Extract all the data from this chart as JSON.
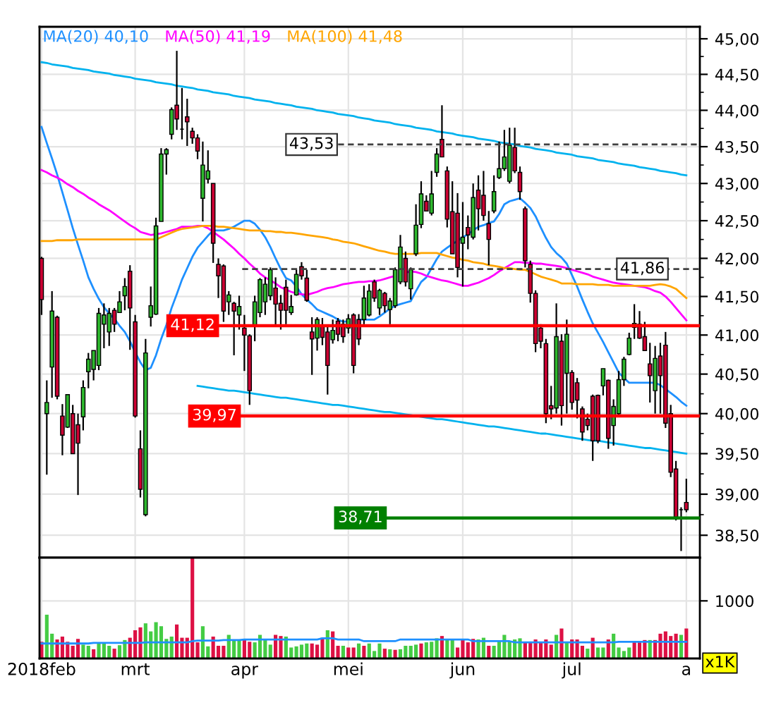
{
  "chart_data": [
    {
      "type": "candlestick",
      "log": true,
      "tick_labels": "y",
      "grid": true,
      "legend": "top left",
      "categories": [
        null,
        null,
        null,
        null,
        null,
        null,
        null,
        null,
        null,
        null,
        null,
        null,
        null,
        null,
        null,
        null,
        null,
        null,
        null,
        null,
        null,
        null,
        null,
        null,
        null,
        null,
        null,
        null,
        null,
        null,
        null,
        null,
        null,
        null,
        null,
        null,
        null,
        null,
        null,
        null,
        null,
        null,
        null,
        null,
        null,
        null,
        null,
        null,
        null,
        null,
        null,
        null,
        null,
        null,
        null,
        null,
        null,
        null,
        null,
        null,
        null,
        null,
        null,
        null,
        null,
        null,
        null,
        null,
        null,
        null,
        null,
        null,
        null,
        null,
        null,
        null,
        null,
        null,
        null,
        null,
        null,
        null,
        null,
        null,
        null,
        null,
        null,
        null,
        null,
        null,
        null,
        null,
        null,
        null,
        null,
        null,
        null,
        null,
        null,
        null,
        null,
        null,
        null,
        null,
        null,
        null,
        null,
        null,
        null,
        null,
        null,
        null,
        null,
        null,
        null,
        null,
        null,
        null,
        null,
        null,
        null,
        null,
        null,
        null,
        null
      ],
      "ohlc": [
        [
          42.0,
          42.02,
          41.26,
          41.46
        ],
        [
          40.0,
          40.42,
          39.24,
          40.14
        ],
        [
          40.59,
          41.57,
          40.2,
          41.31
        ],
        [
          41.23,
          41.25,
          40.18,
          40.22
        ],
        [
          39.97,
          40.12,
          39.48,
          39.73
        ],
        [
          39.83,
          40.24,
          39.82,
          40.24
        ],
        [
          40.0,
          40.11,
          39.5,
          39.5
        ],
        [
          39.86,
          40.0,
          38.99,
          39.63
        ],
        [
          39.96,
          40.42,
          39.79,
          40.33
        ],
        [
          40.53,
          40.77,
          40.32,
          40.69
        ],
        [
          40.56,
          40.8,
          40.42,
          40.8
        ],
        [
          40.61,
          41.35,
          40.55,
          41.28
        ],
        [
          41.14,
          41.41,
          40.83,
          41.26
        ],
        [
          41.04,
          41.35,
          40.86,
          41.28
        ],
        [
          41.32,
          41.35,
          41.04,
          41.14
        ],
        [
          41.29,
          41.57,
          41.29,
          41.43
        ],
        [
          41.51,
          41.74,
          41.32,
          41.63
        ],
        [
          41.83,
          41.91,
          40.81,
          41.35
        ],
        [
          41.17,
          41.26,
          39.95,
          39.97
        ],
        [
          39.56,
          39.79,
          38.96,
          39.06
        ],
        [
          38.75,
          40.95,
          38.73,
          40.77
        ],
        [
          41.23,
          41.63,
          41.11,
          41.38
        ],
        [
          41.27,
          42.54,
          41.26,
          42.43
        ],
        [
          42.49,
          43.48,
          42.49,
          43.4
        ],
        [
          43.4,
          43.48,
          43.12,
          43.46
        ],
        [
          43.67,
          44.04,
          43.6,
          44.01
        ],
        [
          44.07,
          44.83,
          43.73,
          43.88
        ],
        [
          43.74,
          44.31,
          43.6,
          43.74
        ],
        [
          43.91,
          44.16,
          43.51,
          43.84
        ],
        [
          43.71,
          43.76,
          43.54,
          43.62
        ],
        [
          43.62,
          43.67,
          43.33,
          43.44
        ],
        [
          42.8,
          43.57,
          42.49,
          43.25
        ],
        [
          43.06,
          43.45,
          43.0,
          43.17
        ],
        [
          43.0,
          43.0,
          41.94,
          42.2
        ],
        [
          41.92,
          42.0,
          41.48,
          41.77
        ],
        [
          41.9,
          41.92,
          41.17,
          41.31
        ],
        [
          41.43,
          41.57,
          41.26,
          41.52
        ],
        [
          41.41,
          41.43,
          40.74,
          41.31
        ],
        [
          41.26,
          41.51,
          41.07,
          41.37
        ],
        [
          41.09,
          41.26,
          40.54,
          41.0
        ],
        [
          40.99,
          41.01,
          40.11,
          40.29
        ],
        [
          41.11,
          41.51,
          40.92,
          41.43
        ],
        [
          41.29,
          41.74,
          41.23,
          41.72
        ],
        [
          41.43,
          41.75,
          41.26,
          41.66
        ],
        [
          41.51,
          41.88,
          41.45,
          41.85
        ],
        [
          41.61,
          41.75,
          41.11,
          41.4
        ],
        [
          41.41,
          41.52,
          41.07,
          41.32
        ],
        [
          41.62,
          41.72,
          41.14,
          41.32
        ],
        [
          41.29,
          41.52,
          41.26,
          41.37
        ],
        [
          41.52,
          41.85,
          41.51,
          41.79
        ],
        [
          41.89,
          41.95,
          41.72,
          41.77
        ],
        [
          41.74,
          41.85,
          41.43,
          41.45
        ],
        [
          41.04,
          41.23,
          40.49,
          40.95
        ],
        [
          40.96,
          41.23,
          40.8,
          41.2
        ],
        [
          41.12,
          41.22,
          40.87,
          40.97
        ],
        [
          41.04,
          41.12,
          40.24,
          40.61
        ],
        [
          40.94,
          41.2,
          40.89,
          41.06
        ],
        [
          41.18,
          41.22,
          40.92,
          41.01
        ],
        [
          41.14,
          41.2,
          40.9,
          40.98
        ],
        [
          41.09,
          41.27,
          41.02,
          41.21
        ],
        [
          41.26,
          41.28,
          40.51,
          40.61
        ],
        [
          41.2,
          41.27,
          40.87,
          40.95
        ],
        [
          41.2,
          41.64,
          41.14,
          41.48
        ],
        [
          41.26,
          41.66,
          41.24,
          41.57
        ],
        [
          41.69,
          41.72,
          41.43,
          41.48
        ],
        [
          41.35,
          41.6,
          41.26,
          41.58
        ],
        [
          41.54,
          41.56,
          41.29,
          41.38
        ],
        [
          41.33,
          41.48,
          41.14,
          41.44
        ],
        [
          41.38,
          41.88,
          41.35,
          41.85
        ],
        [
          41.69,
          42.31,
          41.66,
          42.15
        ],
        [
          42.0,
          42.09,
          41.63,
          41.69
        ],
        [
          41.6,
          41.88,
          41.46,
          41.85
        ],
        [
          42.06,
          42.72,
          42.03,
          42.44
        ],
        [
          42.45,
          43.03,
          42.4,
          42.86
        ],
        [
          42.76,
          42.84,
          42.63,
          42.63
        ],
        [
          42.6,
          43.17,
          42.57,
          42.86
        ],
        [
          43.15,
          43.48,
          43.09,
          43.4
        ],
        [
          43.6,
          44.07,
          43.36,
          43.36
        ],
        [
          43.17,
          43.23,
          42.41,
          42.52
        ],
        [
          42.62,
          43.03,
          42.06,
          42.06
        ],
        [
          42.6,
          42.87,
          41.75,
          41.88
        ],
        [
          42.2,
          42.75,
          41.63,
          42.28
        ],
        [
          42.41,
          42.57,
          42.12,
          42.31
        ],
        [
          42.28,
          43.0,
          42.25,
          42.81
        ],
        [
          42.91,
          43.11,
          42.37,
          42.66
        ],
        [
          42.84,
          43.17,
          42.5,
          42.57
        ],
        [
          42.46,
          42.63,
          41.91,
          42.25
        ],
        [
          42.63,
          43.11,
          42.6,
          42.89
        ],
        [
          43.08,
          43.57,
          43.06,
          43.2
        ],
        [
          43.2,
          43.73,
          43.17,
          43.36
        ],
        [
          43.03,
          43.76,
          43.0,
          43.52
        ],
        [
          43.49,
          43.76,
          43.14,
          43.17
        ],
        [
          43.15,
          43.23,
          42.78,
          42.89
        ],
        [
          42.66,
          42.69,
          41.88,
          41.97
        ],
        [
          41.92,
          41.97,
          41.42,
          41.54
        ],
        [
          41.54,
          41.58,
          40.78,
          40.89
        ],
        [
          41.09,
          41.14,
          40.83,
          40.92
        ],
        [
          40.89,
          40.95,
          39.88,
          40.0
        ],
        [
          40.1,
          40.35,
          39.93,
          40.06
        ],
        [
          40.07,
          41.41,
          40.0,
          40.98
        ],
        [
          40.92,
          41.01,
          39.85,
          40.1
        ],
        [
          40.51,
          41.2,
          40.0,
          41.01
        ],
        [
          40.52,
          40.55,
          40.05,
          40.14
        ],
        [
          40.39,
          40.45,
          39.94,
          40.17
        ],
        [
          40.06,
          40.09,
          39.66,
          39.77
        ],
        [
          39.93,
          40.0,
          39.79,
          39.85
        ],
        [
          40.22,
          40.24,
          39.41,
          39.66
        ],
        [
          40.23,
          40.24,
          39.63,
          39.66
        ],
        [
          40.35,
          40.57,
          40.23,
          40.57
        ],
        [
          40.42,
          40.43,
          39.56,
          39.69
        ],
        [
          39.85,
          40.18,
          39.6,
          40.09
        ],
        [
          40.0,
          40.54,
          39.97,
          40.43
        ],
        [
          40.43,
          40.72,
          40.35,
          40.69
        ],
        [
          40.75,
          41.03,
          40.74,
          40.96
        ],
        [
          41.1,
          41.4,
          40.95,
          41.15
        ],
        [
          41.14,
          41.31,
          40.95,
          40.96
        ],
        [
          40.98,
          41.17,
          40.8,
          40.8
        ],
        [
          40.63,
          40.9,
          40.14,
          40.48
        ],
        [
          40.29,
          40.86,
          40.0,
          40.7
        ],
        [
          40.73,
          40.9,
          40.0,
          40.48
        ],
        [
          40.87,
          41.04,
          39.82,
          39.88
        ],
        [
          40.0,
          40.11,
          39.21,
          39.27
        ],
        [
          39.31,
          39.41,
          38.68,
          38.72
        ],
        [
          38.81,
          38.84,
          38.31,
          38.81
        ],
        [
          38.9,
          39.19,
          38.78,
          38.81
        ]
      ],
      "colors": [
        "#cc0033",
        "#2eb82e",
        "#2eb82e",
        "#cc0033",
        "#cc0033",
        "#2eb82e",
        "#cc0033",
        "#cc0033",
        "#2eb82e",
        "#2eb82e",
        "#2eb82e",
        "#2eb82e",
        "#2eb82e",
        "#2eb82e",
        "#cc0033",
        "#2eb82e",
        "#2eb82e",
        "#cc0033",
        "#cc0033",
        "#cc0033",
        "#2eb82e",
        "#2eb82e",
        "#2eb82e",
        "#2eb82e",
        "#2eb82e",
        "#2eb82e",
        "#cc0033",
        "#000000",
        "#cc0033",
        "#cc0033",
        "#cc0033",
        "#2eb82e",
        "#2eb82e",
        "#cc0033",
        "#cc0033",
        "#cc0033",
        "#2eb82e",
        "#cc0033",
        "#2eb82e",
        "#cc0033",
        "#cc0033",
        "#2eb82e",
        "#2eb82e",
        "#2eb82e",
        "#2eb82e",
        "#cc0033",
        "#cc0033",
        "#cc0033",
        "#2eb82e",
        "#2eb82e",
        "#cc0033",
        "#cc0033",
        "#cc0033",
        "#2eb82e",
        "#cc0033",
        "#cc0033",
        "#2eb82e",
        "#cc0033",
        "#cc0033",
        "#2eb82e",
        "#cc0033",
        "#cc0033",
        "#2eb82e",
        "#2eb82e",
        "#cc0033",
        "#2eb82e",
        "#cc0033",
        "#2eb82e",
        "#2eb82e",
        "#2eb82e",
        "#cc0033",
        "#2eb82e",
        "#2eb82e",
        "#2eb82e",
        "#cc0033",
        "#2eb82e",
        "#2eb82e",
        "#cc0033",
        "#cc0033",
        "#cc0033",
        "#cc0033",
        "#2eb82e",
        "#cc0033",
        "#2eb82e",
        "#cc0033",
        "#cc0033",
        "#cc0033",
        "#2eb82e",
        "#2eb82e",
        "#2eb82e",
        "#2eb82e",
        "#cc0033",
        "#cc0033",
        "#cc0033",
        "#cc0033",
        "#cc0033",
        "#cc0033",
        "#cc0033",
        "#cc0033",
        "#2eb82e",
        "#cc0033",
        "#2eb82e",
        "#cc0033",
        "#cc0033",
        "#cc0033",
        "#cc0033",
        "#cc0033",
        "#cc0033",
        "#2eb82e",
        "#cc0033",
        "#2eb82e",
        "#2eb82e",
        "#2eb82e",
        "#2eb82e",
        "#2eb82e",
        "#cc0033",
        "#cc0033",
        "#cc0033",
        "#2eb82e",
        "#cc0033",
        "#cc0033",
        "#cc0033",
        "#cc0033",
        "#000000",
        "#cc0033"
      ],
      "series": [
        {
          "type": "line",
          "name": "MA(20) 40,10",
          "color": "#1e90ff",
          "values": [
            43.77,
            43.55,
            43.34,
            43.12,
            42.88,
            42.64,
            42.4,
            42.18,
            41.97,
            41.75,
            41.6,
            41.47,
            41.36,
            41.28,
            41.21,
            41.12,
            41.04,
            40.92,
            40.78,
            40.65,
            40.55,
            40.58,
            40.74,
            40.95,
            41.13,
            41.35,
            41.53,
            41.72,
            41.87,
            42.02,
            42.14,
            42.22,
            42.3,
            42.37,
            42.37,
            42.37,
            42.39,
            42.42,
            42.46,
            42.5,
            42.5,
            42.46,
            42.38,
            42.28,
            42.15,
            42.0,
            41.86,
            41.74,
            41.71,
            41.63,
            41.53,
            41.46,
            41.4,
            41.33,
            41.3,
            41.27,
            41.24,
            41.2,
            41.17,
            41.18,
            null,
            41.2,
            41.2,
            41.2,
            41.2,
            41.24,
            41.29,
            41.34,
            41.38,
            41.4,
            41.42,
            41.44,
            41.57,
            41.69,
            41.75,
            41.87,
            41.99,
            42.09,
            42.14,
            42.19,
            42.23,
            42.28,
            42.32,
            42.37,
            42.42,
            42.44,
            42.47,
            42.49,
            42.59,
            42.72,
            42.76,
            42.78,
            42.8,
            42.74,
            42.67,
            42.56,
            42.41,
            42.27,
            42.15,
            42.07,
            42.01,
            41.93,
            41.78,
            41.63,
            41.46,
            41.3,
            41.15,
            41.03,
            40.91,
            40.78,
            40.65,
            40.52,
            40.45,
            40.39,
            40.39,
            40.39,
            40.39,
            40.39,
            40.39,
            40.36,
            40.31,
            40.26,
            40.21,
            40.15,
            40.1
          ]
        },
        {
          "type": "line",
          "name": "MA(50) 41,19",
          "color": "#ff00ff",
          "values": [
            43.18,
            43.15,
            43.11,
            43.08,
            43.04,
            42.99,
            42.95,
            42.9,
            42.86,
            42.81,
            42.77,
            42.72,
            42.68,
            42.64,
            42.59,
            42.54,
            42.49,
            42.44,
            42.4,
            42.35,
            42.33,
            42.31,
            42.32,
            42.33,
            42.35,
            42.37,
            42.39,
            42.42,
            42.42,
            42.42,
            42.43,
            42.43,
            42.4,
            42.35,
            42.3,
            42.25,
            42.19,
            42.13,
            42.06,
            42.0,
            41.93,
            41.87,
            41.8,
            41.75,
            41.71,
            41.67,
            41.62,
            41.59,
            41.56,
            41.54,
            41.53,
            41.52,
            41.54,
            41.56,
            41.59,
            41.61,
            41.62,
            41.64,
            41.66,
            41.67,
            41.68,
            41.69,
            41.69,
            41.7,
            41.7,
            41.71,
            41.73,
            41.75,
            41.77,
            null,
            41.81,
            41.83,
            41.82,
            41.8,
            41.77,
            41.75,
            41.73,
            41.71,
            41.7,
            41.68,
            41.66,
            41.64,
            41.64,
            41.66,
            41.68,
            41.71,
            41.74,
            41.78,
            41.83,
            41.87,
            41.91,
            41.95,
            41.95,
            41.94,
            41.94,
            41.93,
            41.93,
            41.92,
            41.91,
            41.9,
            41.89,
            41.87,
            41.85,
            41.83,
            41.81,
            41.79,
            41.76,
            41.74,
            41.72,
            41.7,
            41.68,
            41.67,
            41.66,
            41.65,
            41.64,
            41.63,
            41.62,
            41.6,
            41.57,
            41.55,
            41.5,
            41.43,
            41.35,
            41.27,
            41.19
          ]
        },
        {
          "type": "line",
          "name": "MA(100) 41,48",
          "color": "#ffa500",
          "values": [
            42.23,
            42.23,
            42.23,
            42.24,
            42.24,
            42.24,
            42.24,
            42.25,
            42.25,
            42.25,
            42.25,
            42.25,
            42.25,
            42.25,
            42.25,
            42.25,
            42.25,
            42.25,
            42.25,
            42.25,
            42.25,
            42.25,
            42.25,
            42.28,
            42.31,
            42.34,
            42.37,
            42.39,
            42.4,
            42.41,
            42.42,
            42.43,
            42.43,
            42.43,
            42.42,
            42.42,
            42.41,
            42.4,
            42.39,
            42.38,
            42.37,
            42.37,
            42.37,
            42.36,
            42.36,
            42.35,
            42.35,
            42.34,
            42.34,
            42.33,
            42.32,
            42.31,
            42.3,
            42.29,
            42.28,
            42.27,
            42.25,
            42.24,
            42.22,
            42.21,
            42.2,
            42.18,
            42.16,
            42.14,
            42.12,
            42.1,
            42.09,
            42.07,
            42.06,
            42.06,
            42.06,
            42.06,
            42.06,
            42.07,
            42.07,
            42.07,
            42.07,
            42.05,
            42.03,
            42.01,
            42.0,
            41.98,
            41.97,
            41.95,
            41.94,
            41.93,
            41.91,
            41.9,
            41.89,
            41.87,
            41.87,
            41.86,
            41.85,
            41.85,
            41.82,
            41.79,
            41.76,
            41.74,
            41.72,
            41.7,
            41.67,
            41.67,
            41.67,
            41.66,
            41.66,
            41.66,
            41.66,
            41.65,
            41.65,
            41.65,
            41.64,
            41.64,
            41.64,
            41.64,
            41.64,
            41.64,
            41.64,
            41.64,
            41.65,
            41.66,
            41.65,
            41.63,
            41.6,
            41.54,
            41.48
          ]
        },
        {
          "type": "line",
          "color": "#00b2ee",
          "values": [
            44.67,
            44.66,
            44.64,
            44.63,
            44.62,
            44.61,
            44.59,
            44.58,
            44.57,
            44.56,
            44.54,
            44.53,
            44.52,
            44.51,
            44.49,
            44.48,
            44.47,
            44.46,
            44.44,
            44.43,
            44.42,
            44.41,
            44.39,
            44.38,
            44.37,
            44.36,
            44.34,
            44.33,
            44.32,
            44.31,
            44.29,
            44.28,
            44.27,
            44.25,
            44.24,
            44.23,
            44.22,
            44.2,
            44.19,
            44.18,
            44.17,
            44.15,
            44.14,
            44.13,
            44.12,
            44.1,
            44.09,
            44.08,
            44.07,
            44.05,
            44.04,
            44.03,
            44.02,
            44.0,
            43.99,
            43.98,
            43.97,
            43.95,
            43.94,
            43.93,
            43.92,
            43.9,
            43.89,
            43.88,
            43.86,
            43.85,
            43.84,
            43.83,
            43.81,
            43.8,
            43.79,
            43.78,
            43.76,
            43.75,
            43.74,
            43.73,
            43.71,
            43.7,
            43.69,
            43.68,
            43.66,
            43.65,
            43.64,
            43.63,
            43.61,
            43.6,
            43.59,
            43.58,
            43.56,
            43.55,
            43.54,
            43.53,
            43.51,
            43.5,
            43.49,
            43.47,
            43.46,
            43.45,
            43.44,
            43.42,
            43.41,
            43.4,
            43.39,
            43.37,
            43.36,
            43.35,
            43.34,
            43.32,
            43.31,
            43.3,
            43.29,
            43.27,
            43.26,
            43.25,
            43.24,
            43.22,
            43.21,
            43.2,
            43.19,
            43.17,
            43.16,
            43.15,
            43.14,
            43.12,
            43.11
          ]
        },
        {
          "type": "line",
          "color": "#00b2ee",
          "values": [
            null,
            null,
            null,
            null,
            null,
            null,
            null,
            null,
            null,
            null,
            null,
            null,
            null,
            null,
            null,
            null,
            null,
            null,
            null,
            null,
            null,
            null,
            null,
            null,
            null,
            null,
            null,
            null,
            null,
            null,
            40.35,
            40.34,
            40.33,
            40.32,
            40.31,
            40.3,
            40.29,
            40.29,
            40.28,
            40.27,
            40.26,
            40.25,
            40.24,
            40.23,
            40.22,
            40.21,
            40.2,
            40.2,
            40.19,
            40.18,
            40.17,
            40.16,
            40.15,
            40.14,
            40.13,
            40.12,
            40.11,
            40.11,
            40.1,
            40.09,
            40.08,
            40.07,
            40.06,
            40.05,
            40.04,
            40.03,
            40.02,
            40.02,
            40.01,
            40.0,
            39.99,
            39.98,
            39.97,
            39.96,
            39.95,
            39.94,
            39.93,
            39.93,
            39.92,
            39.91,
            39.9,
            39.89,
            39.88,
            39.87,
            39.86,
            39.85,
            39.84,
            39.84,
            39.83,
            39.82,
            39.81,
            39.8,
            39.79,
            39.78,
            39.77,
            39.76,
            39.75,
            39.75,
            39.74,
            39.73,
            39.72,
            39.71,
            39.7,
            39.69,
            39.68,
            39.67,
            39.66,
            39.66,
            39.65,
            39.64,
            39.63,
            39.62,
            39.61,
            39.6,
            39.59,
            39.58,
            39.57,
            39.57,
            39.56,
            39.55,
            39.54,
            39.53,
            39.52,
            39.51,
            39.5
          ]
        }
      ],
      "ref_lines": [
        {
          "axis": "y",
          "value": 43.53,
          "label": "43,53",
          "color": "#404040",
          "line_style": "dashed"
        },
        {
          "axis": "y",
          "value": 41.86,
          "label": "41,86",
          "color": "#404040",
          "line_style": "dashed"
        },
        {
          "axis": "y",
          "value": 41.12,
          "label": "41,12",
          "color": "#ff0000",
          "line_style": "solid"
        },
        {
          "axis": "y",
          "value": 39.97,
          "label": "39,97",
          "color": "#ff0000",
          "line_style": "solid"
        },
        {
          "axis": "y",
          "value": 38.71,
          "label": "38,71",
          "color": "#008000",
          "line_style": "solid"
        }
      ],
      "ylim": [
        38.23,
        45.17
      ],
      "yticks": [
        {
          "value": 38.5,
          "label": "38,50"
        },
        {
          "value": 39,
          "label": "39,00"
        },
        {
          "value": 39.5,
          "label": "39,50"
        },
        {
          "value": 40,
          "label": "40,00"
        },
        {
          "value": 40.5,
          "label": "40,50"
        },
        {
          "value": 41,
          "label": "41,00"
        },
        {
          "value": 41.5,
          "label": "41,50"
        },
        {
          "value": 42,
          "label": "42,00"
        },
        {
          "value": 42.5,
          "label": "42,50"
        },
        {
          "value": 43,
          "label": "43,00"
        },
        {
          "value": 43.5,
          "label": "43,50"
        },
        {
          "value": 44,
          "label": "44,00"
        },
        {
          "value": 44.5,
          "label": "44,50"
        },
        {
          "value": 45,
          "label": "45,00"
        }
      ]
    },
    {
      "type": "bar",
      "grid": true,
      "ylabel": "x1K",
      "categories": [
        "2018feb",
        null,
        null,
        null,
        null,
        null,
        null,
        null,
        null,
        null,
        null,
        null,
        null,
        null,
        null,
        null,
        null,
        null,
        "mrt",
        null,
        null,
        null,
        null,
        null,
        null,
        null,
        null,
        null,
        null,
        null,
        null,
        null,
        null,
        null,
        null,
        null,
        null,
        null,
        null,
        "apr",
        null,
        null,
        null,
        null,
        null,
        null,
        null,
        null,
        null,
        null,
        null,
        null,
        null,
        null,
        null,
        null,
        null,
        null,
        null,
        "mei",
        null,
        null,
        null,
        null,
        null,
        null,
        null,
        null,
        null,
        null,
        null,
        null,
        null,
        null,
        null,
        null,
        null,
        null,
        null,
        null,
        null,
        "jun",
        null,
        null,
        null,
        null,
        null,
        null,
        null,
        null,
        null,
        null,
        null,
        null,
        null,
        null,
        null,
        null,
        null,
        null,
        null,
        null,
        "jul",
        null,
        null,
        null,
        null,
        null,
        null,
        null,
        null,
        null,
        null,
        null,
        null,
        null,
        null,
        null,
        null,
        null,
        null,
        null,
        null,
        null,
        "a"
      ],
      "series": [
        {
          "type": "bar",
          "values": [
            290,
            760,
            430,
            330,
            380,
            290,
            220,
            340,
            240,
            220,
            160,
            260,
            260,
            220,
            170,
            230,
            320,
            360,
            490,
            540,
            610,
            470,
            630,
            560,
            340,
            380,
            590,
            360,
            360,
            1750,
            280,
            560,
            210,
            380,
            220,
            220,
            410,
            330,
            330,
            330,
            290,
            280,
            410,
            330,
            240,
            410,
            390,
            380,
            190,
            210,
            240,
            260,
            260,
            240,
            360,
            490,
            470,
            220,
            220,
            190,
            190,
            260,
            220,
            260,
            130,
            260,
            170,
            160,
            150,
            160,
            220,
            220,
            240,
            260,
            280,
            290,
            350,
            390,
            330,
            330,
            190,
            330,
            280,
            340,
            330,
            360,
            220,
            220,
            300,
            410,
            300,
            330,
            350,
            290,
            290,
            330,
            280,
            330,
            240,
            410,
            520,
            290,
            330,
            330,
            220,
            170,
            360,
            190,
            190,
            330,
            430,
            190,
            130,
            190,
            290,
            290,
            320,
            320,
            320,
            430,
            470,
            390,
            430,
            410,
            520
          ],
          "colors": [
            "#dd1144",
            "#44cc44",
            "#44cc44",
            "#dd1144",
            "#dd1144",
            "#dd1144",
            "#dd1144",
            "#dd1144",
            "#44cc44",
            "#44cc44",
            "#dd1144",
            "#44cc44",
            "#44cc44",
            "#44cc44",
            "#dd1144",
            "#44cc44",
            "#44cc44",
            "#dd1144",
            "#dd1144",
            "#dd1144",
            "#44cc44",
            "#44cc44",
            "#44cc44",
            "#44cc44",
            "#44cc44",
            "#44cc44",
            "#dd1144",
            "#dd1144",
            "#dd1144",
            "#dd1144",
            "#dd1144",
            "#44cc44",
            "#44cc44",
            "#dd1144",
            "#dd1144",
            "#dd1144",
            "#44cc44",
            "#44cc44",
            "#44cc44",
            "#dd1144",
            "#dd1144",
            "#44cc44",
            "#44cc44",
            "#44cc44",
            "#44cc44",
            "#dd1144",
            "#dd1144",
            "#44cc44",
            "#44cc44",
            "#44cc44",
            "#44cc44",
            "#44cc44",
            "#dd1144",
            "#dd1144",
            "#dd1144",
            "#44cc44",
            "#dd1144",
            "#dd1144",
            "#44cc44",
            "#dd1144",
            "#dd1144",
            "#44cc44",
            "#dd1144",
            "#44cc44",
            "#44cc44",
            "#44cc44",
            "#dd1144",
            "#44cc44",
            "#dd1144",
            "#44cc44",
            "#44cc44",
            "#44cc44",
            "#44cc44",
            "#dd1144",
            "#44cc44",
            "#44cc44",
            "#44cc44",
            "#dd1144",
            "#44cc44",
            "#44cc44",
            "#dd1144",
            "#dd1144",
            "#dd1144",
            "#dd1144",
            "#44cc44",
            "#44cc44",
            "#dd1144",
            "#44cc44",
            "#44cc44",
            "#44cc44",
            "#44cc44",
            "#44cc44",
            "#44cc44",
            "#dd1144",
            "#dd1144",
            "#dd1144",
            "#dd1144",
            "#dd1144",
            "#dd1144",
            "#44cc44",
            "#dd1144",
            "#44cc44",
            "#dd1144",
            "#dd1144",
            "#dd1144",
            "#44cc44",
            "#dd1144",
            "#44cc44",
            "#44cc44",
            "#dd1144",
            "#44cc44",
            "#44cc44",
            "#44cc44",
            "#44cc44",
            "#dd1144",
            "#dd1144",
            "#dd1144",
            "#44cc44",
            "#dd1144",
            "#dd1144",
            "#dd1144",
            "#dd1144",
            "#dd1144",
            "#44cc44",
            "#dd1144"
          ]
        },
        {
          "type": "line",
          "color": "#1e90ff",
          "values": [
            260,
            260,
            260,
            260,
            260,
            260,
            260,
            260,
            260,
            260,
            270,
            270,
            270,
            270,
            270,
            270,
            270,
            270,
            270,
            270,
            280,
            280,
            280,
            280,
            280,
            280,
            280,
            280,
            280,
            300,
            310,
            310,
            310,
            310,
            310,
            320,
            320,
            320,
            320,
            330,
            330,
            330,
            330,
            330,
            330,
            330,
            330,
            330,
            330,
            330,
            330,
            330,
            330,
            330,
            350,
            350,
            350,
            330,
            330,
            330,
            330,
            330,
            300,
            300,
            300,
            300,
            300,
            300,
            300,
            330,
            330,
            330,
            330,
            330,
            330,
            330,
            330,
            330,
            330,
            330,
            330,
            330,
            330,
            300,
            300,
            300,
            300,
            300,
            300,
            300,
            300,
            280,
            280,
            280,
            280,
            280,
            280,
            280,
            280,
            280,
            280,
            280,
            280,
            280,
            280,
            280,
            280,
            280,
            280,
            280,
            280,
            290,
            290,
            290,
            290,
            290,
            290,
            290,
            290,
            290,
            290,
            290,
            290,
            290,
            290
          ]
        }
      ],
      "ylim": [
        0,
        1750
      ],
      "yticks": [
        1000
      ]
    }
  ]
}
